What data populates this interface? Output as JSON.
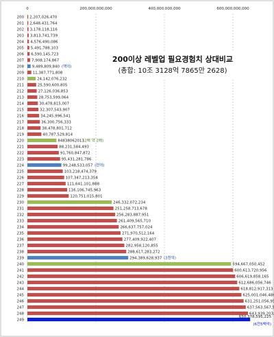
{
  "chart_data": {
    "type": "bar",
    "orientation": "horizontal",
    "title": "200이상 레벨업 필요경험치 상대비교",
    "subtitle": "(총합: 10조 3128억 7865만 2628)",
    "xlim": [
      0,
      700000000000
    ],
    "x_ticks": [
      {
        "value": 0,
        "label": "0"
      },
      {
        "value": 200000000000,
        "label": "200,000,000,000"
      },
      {
        "value": 400000000000,
        "label": "400,000,000,000"
      },
      {
        "value": 600000000000,
        "label": "600,000,000,000"
      }
    ],
    "grid": "vertical-dashed",
    "legend": "none",
    "colors": {
      "default": "#c0504d",
      "milestone": "#9bbb59",
      "highlight": "#4f81bd",
      "final": "#0a1fd0",
      "grid": "#c8c8c8",
      "annotation": "#1f4fa8",
      "annotation_final": "#0a1fd0"
    },
    "points": [
      {
        "category": "200",
        "value": 2207026470,
        "label": "2,207,026,470",
        "color": "default",
        "note": ""
      },
      {
        "category": "201",
        "value": 2648431764,
        "label": "2,648,431,764",
        "color": "default",
        "note": ""
      },
      {
        "category": "202",
        "value": 3178118116,
        "label": "3,178,118,116",
        "color": "default",
        "note": ""
      },
      {
        "category": "203",
        "value": 3813741739,
        "label": "3,813,741,739",
        "color": "default",
        "note": ""
      },
      {
        "category": "204",
        "value": 4576490086,
        "label": "4,576,490,086",
        "color": "default",
        "note": ""
      },
      {
        "category": "205",
        "value": 5491788103,
        "label": "5,491,788,103",
        "color": "default",
        "note": ""
      },
      {
        "category": "206",
        "value": 6590145723,
        "label": "6,590,145,723",
        "color": "default",
        "note": ""
      },
      {
        "category": "207",
        "value": 7908174867,
        "label": "7,908,174,867",
        "color": "default",
        "note": ""
      },
      {
        "category": "208",
        "value": 9489809840,
        "label": "9,489,809,840",
        "color": "highlight",
        "note": "(백억)"
      },
      {
        "category": "209",
        "value": 11387771808,
        "label": "11,387,771,808",
        "color": "default",
        "note": ""
      },
      {
        "category": "210",
        "value": 24142076232,
        "label": "24,142,076,232",
        "color": "milestone",
        "note": ""
      },
      {
        "category": "211",
        "value": 25590600805,
        "label": "25,590,600,805",
        "color": "default",
        "note": ""
      },
      {
        "category": "212",
        "value": 27126036853,
        "label": "27,126,036,853",
        "color": "default",
        "note": ""
      },
      {
        "category": "213",
        "value": 28753599064,
        "label": "28,753,599,064",
        "color": "default",
        "note": ""
      },
      {
        "category": "214",
        "value": 30478815007,
        "label": "30,478,815,007",
        "color": "default",
        "note": ""
      },
      {
        "category": "215",
        "value": 32307543907,
        "label": "32,307,543,907",
        "color": "default",
        "note": ""
      },
      {
        "category": "216",
        "value": 34245996541,
        "label": "34,245,996,541",
        "color": "default",
        "note": ""
      },
      {
        "category": "217",
        "value": 36300756333,
        "label": "36,300,756,333",
        "color": "default",
        "note": ""
      },
      {
        "category": "218",
        "value": 38478801712,
        "label": "38,478,801,712",
        "color": "default",
        "note": ""
      },
      {
        "category": "219",
        "value": 40787529814,
        "label": "40,787,529,814",
        "color": "default",
        "note": ""
      },
      {
        "category": "220",
        "value": 84838062013,
        "label": "84838062013",
        "color": "milestone",
        "note": "(2배 약 2배)"
      },
      {
        "category": "221",
        "value": 88231584493,
        "label": "88,231,584,493",
        "color": "default",
        "note": ""
      },
      {
        "category": "222",
        "value": 91760847872,
        "label": "91,760,847,872",
        "color": "default",
        "note": ""
      },
      {
        "category": "223",
        "value": 95431281786,
        "label": "95,431,281,786",
        "color": "default",
        "note": ""
      },
      {
        "category": "224",
        "value": 99248533057,
        "label": "99,248,533,057",
        "color": "highlight",
        "note": "(천억)"
      },
      {
        "category": "225",
        "value": 103218474379,
        "label": "103,218,474,379",
        "color": "default",
        "note": ""
      },
      {
        "category": "226",
        "value": 107347213354,
        "label": "107,347,213,354",
        "color": "default",
        "note": ""
      },
      {
        "category": "227",
        "value": 111641101888,
        "label": "111,641,101,888",
        "color": "default",
        "note": ""
      },
      {
        "category": "228",
        "value": 116106745963,
        "label": "116,106,745,963",
        "color": "default",
        "note": ""
      },
      {
        "category": "229",
        "value": 120751015801,
        "label": "120,751,015,801",
        "color": "default",
        "note": ""
      },
      {
        "category": "230",
        "value": 246332072234,
        "label": "246,332,072,234",
        "color": "milestone",
        "note": ""
      },
      {
        "category": "231",
        "value": 251258713678,
        "label": "251,258,713,678",
        "color": "default",
        "note": ""
      },
      {
        "category": "232",
        "value": 256283887951,
        "label": "256,283,887,951",
        "color": "default",
        "note": ""
      },
      {
        "category": "233",
        "value": 261409565710,
        "label": "261,409,565,710",
        "color": "default",
        "note": ""
      },
      {
        "category": "234",
        "value": 266637757024,
        "label": "266,637,757,024",
        "color": "default",
        "note": ""
      },
      {
        "category": "235",
        "value": 271970512164,
        "label": "271,970,512,164",
        "color": "default",
        "note": ""
      },
      {
        "category": "236",
        "value": 277409922407,
        "label": "277,409,922,407",
        "color": "default",
        "note": ""
      },
      {
        "category": "237",
        "value": 282958120855,
        "label": "282,958,120,855",
        "color": "default",
        "note": ""
      },
      {
        "category": "238",
        "value": 288617283272,
        "label": "288,617,283,272",
        "color": "default",
        "note": ""
      },
      {
        "category": "239",
        "value": 294389628937,
        "label": "294,389,628,937",
        "color": "highlight",
        "note": "(3천억)"
      },
      {
        "category": "240",
        "value": 594667050452,
        "label": "594,667,050,452",
        "color": "milestone",
        "note": ""
      },
      {
        "category": "241",
        "value": 600613720956,
        "label": "600,613,720,956",
        "color": "default",
        "note": ""
      },
      {
        "category": "242",
        "value": 606619858165,
        "label": "606,619,858,165",
        "color": "default",
        "note": ""
      },
      {
        "category": "243",
        "value": 612686056746,
        "label": "612,686,056,746",
        "color": "default",
        "note": ""
      },
      {
        "category": "244",
        "value": 618812917313,
        "label": "618,812,917,313",
        "color": "default",
        "note": ""
      },
      {
        "category": "245",
        "value": 625001046486,
        "label": "625,001,046,486",
        "color": "default",
        "note": ""
      },
      {
        "category": "246",
        "value": 631251056950,
        "label": "631,251,056,950",
        "color": "default",
        "note": ""
      },
      {
        "category": "247",
        "value": 637563567519,
        "label": "637,563,567,519",
        "color": "default",
        "note": ""
      },
      {
        "category": "248",
        "value": 643939203194,
        "label": "643,939,203,194",
        "color": "default",
        "note": ""
      },
      {
        "category": "249",
        "value": 650378595225,
        "label": "650,378,595,225",
        "color": "final",
        "note": "(6천5백억)"
      }
    ]
  }
}
